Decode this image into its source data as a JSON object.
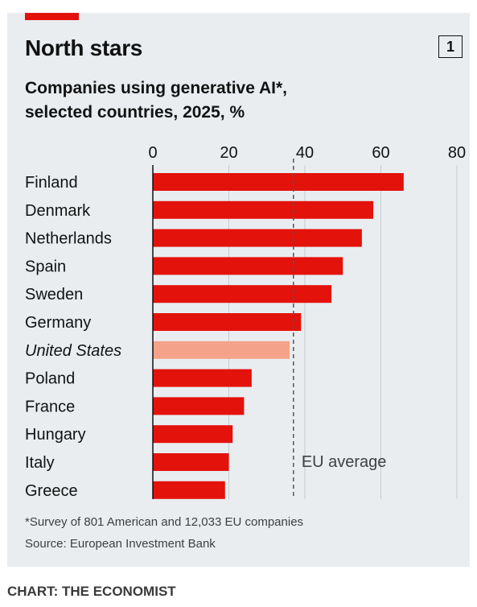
{
  "header": {
    "title": "North stars",
    "number": "1",
    "subtitle": "Companies using generative AI*,\nselected countries, 2025, %"
  },
  "chart_data": {
    "type": "bar",
    "orientation": "horizontal",
    "categories": [
      "Finland",
      "Denmark",
      "Netherlands",
      "Spain",
      "Sweden",
      "Germany",
      "United States",
      "Poland",
      "France",
      "Hungary",
      "Italy",
      "Greece"
    ],
    "values": [
      66,
      58,
      55,
      50,
      47,
      39,
      36,
      26,
      24,
      21,
      20,
      19
    ],
    "highlight": [
      "United States"
    ],
    "xlim": [
      0,
      80
    ],
    "xticks": [
      0,
      20,
      40,
      60,
      80
    ],
    "grid": true,
    "reference_line": {
      "label": "EU average",
      "value": 37
    },
    "colors": {
      "bar": "#e3120b",
      "highlight_bar": "#f4a38a",
      "reference": "#555555",
      "grid": "#c7ccd1"
    }
  },
  "footer": {
    "footnote": "*Survey of 801 American and 12,033 EU companies",
    "source": "Source: European Investment Bank",
    "credit": "CHART: THE ECONOMIST"
  }
}
